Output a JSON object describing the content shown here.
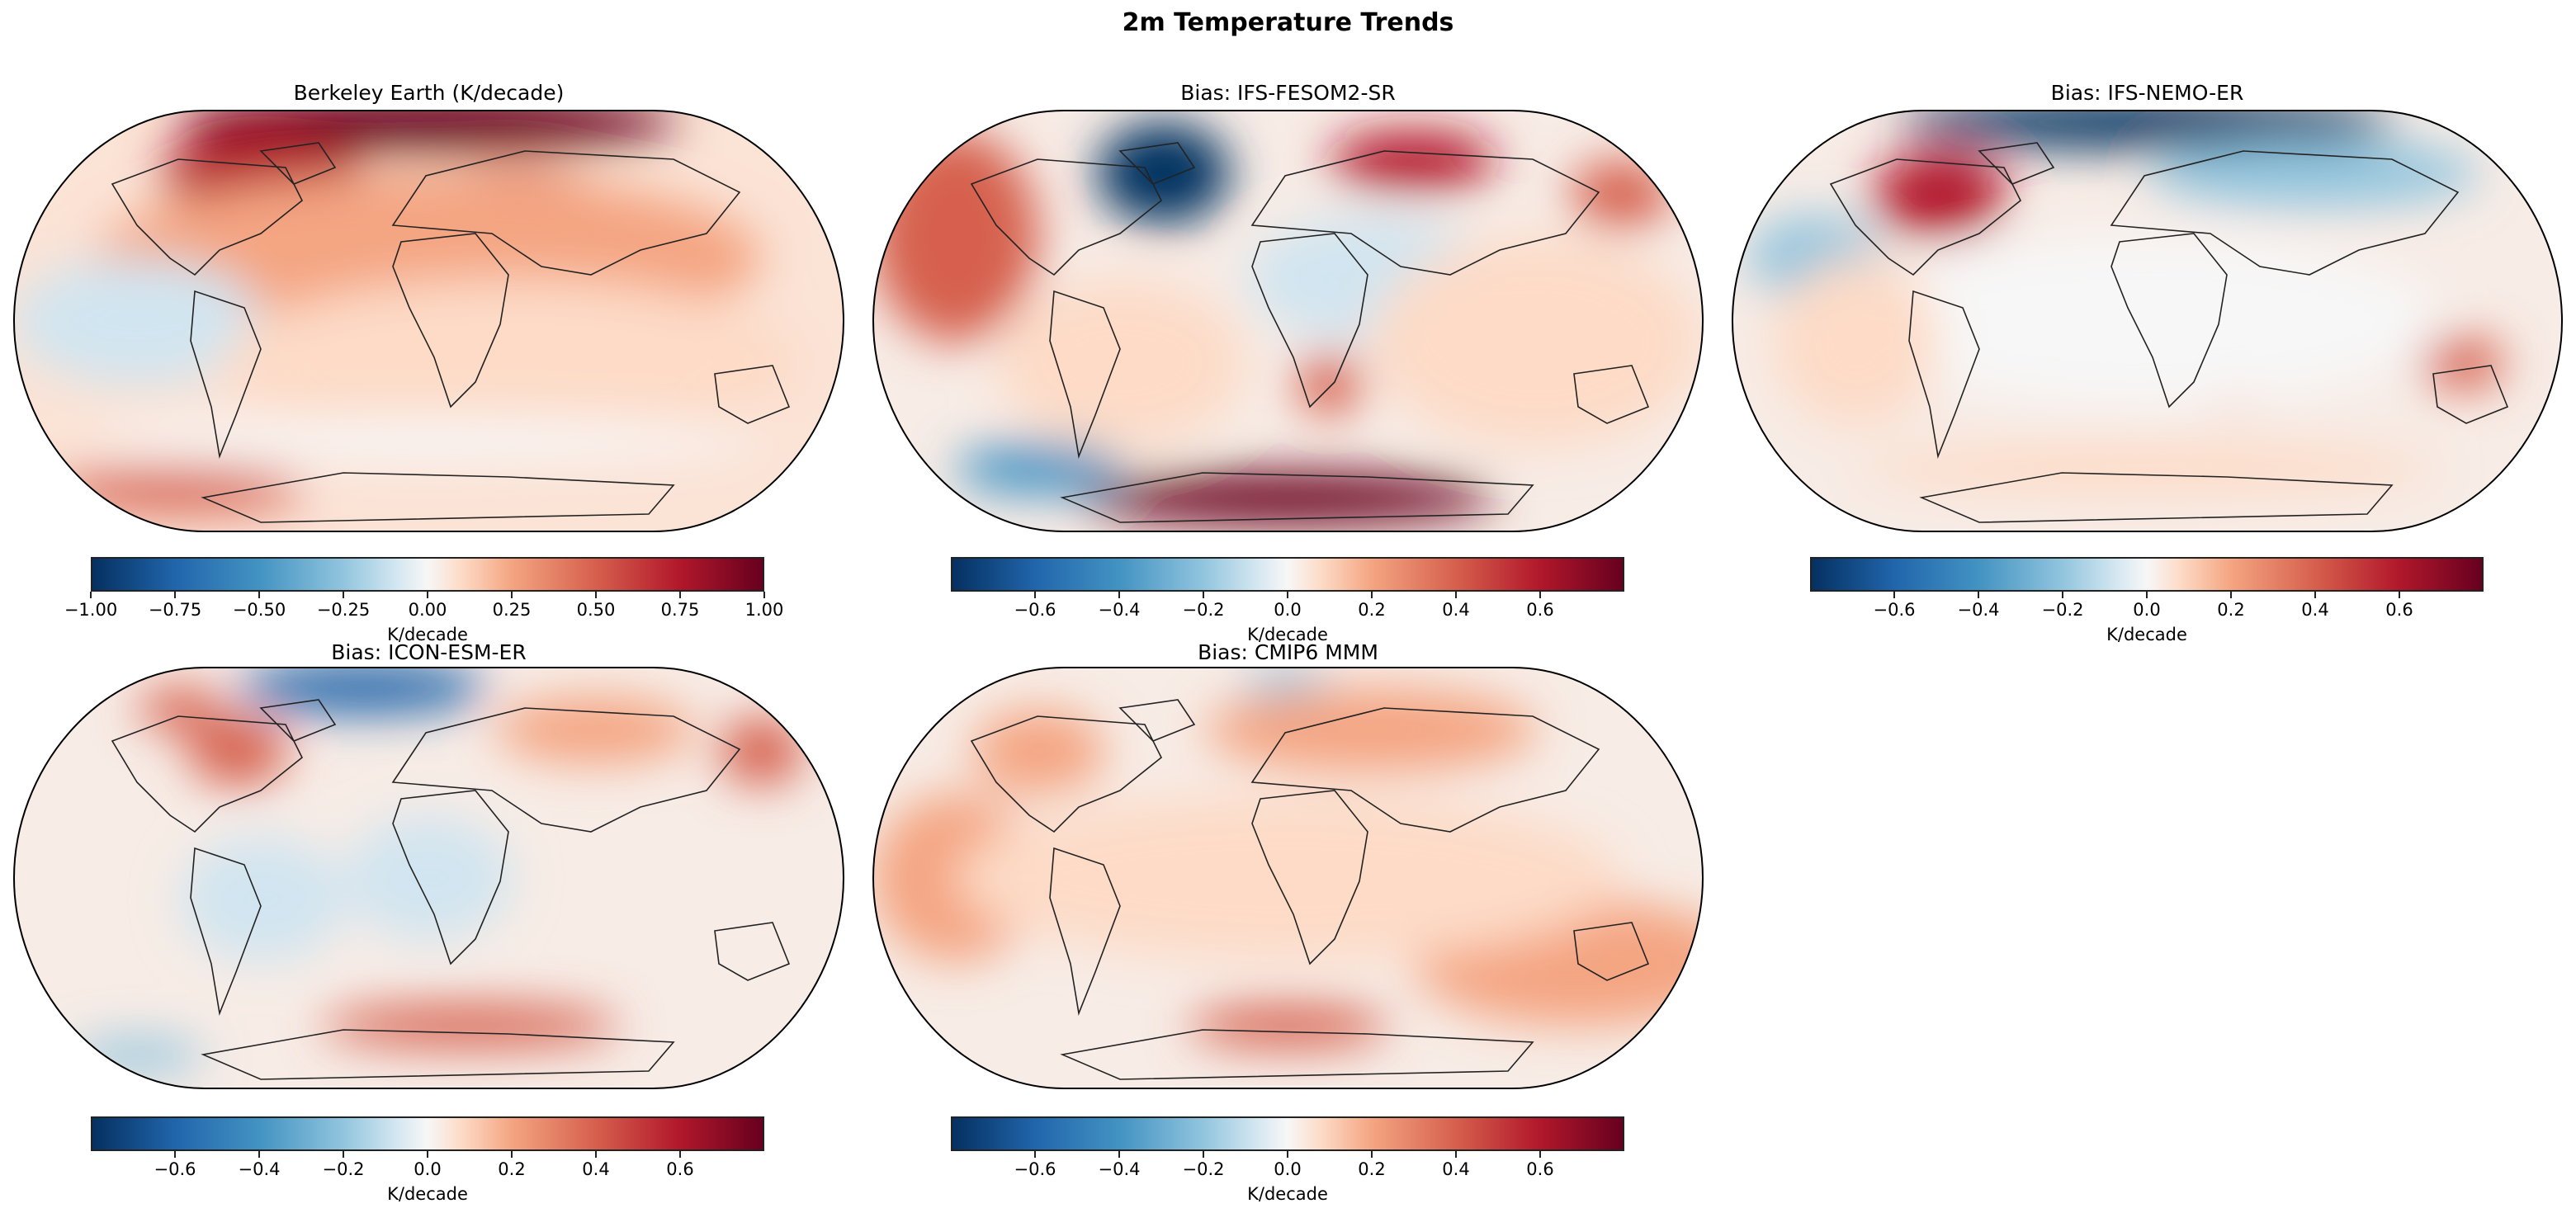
{
  "figure": {
    "title": "2m Temperature Trends"
  },
  "panels": [
    {
      "title": "Berkeley Earth (K/decade)",
      "colorbar": {
        "label": "K/decade",
        "range": [
          -1.0,
          1.0
        ],
        "ticks": [
          "−1.00",
          "−0.75",
          "−0.50",
          "−0.25",
          "0.00",
          "0.25",
          "0.50",
          "0.75",
          "1.00"
        ],
        "tick_values": [
          -1,
          -0.75,
          -0.5,
          -0.25,
          0,
          0.25,
          0.5,
          0.75,
          1
        ]
      }
    },
    {
      "title": "Bias: IFS-FESOM2-SR",
      "colorbar": {
        "label": "K/decade",
        "range": [
          -0.8,
          0.8
        ],
        "ticks": [
          "−0.6",
          "−0.4",
          "−0.2",
          "0.0",
          "0.2",
          "0.4",
          "0.6"
        ],
        "tick_values": [
          -0.6,
          -0.4,
          -0.2,
          0,
          0.2,
          0.4,
          0.6
        ]
      }
    },
    {
      "title": "Bias: IFS-NEMO-ER",
      "colorbar": {
        "label": "K/decade",
        "range": [
          -0.8,
          0.8
        ],
        "ticks": [
          "−0.6",
          "−0.4",
          "−0.2",
          "0.0",
          "0.2",
          "0.4",
          "0.6"
        ],
        "tick_values": [
          -0.6,
          -0.4,
          -0.2,
          0,
          0.2,
          0.4,
          0.6
        ]
      }
    },
    {
      "title": "Bias: ICON-ESM-ER",
      "colorbar": {
        "label": "K/decade",
        "range": [
          -0.8,
          0.8
        ],
        "ticks": [
          "−0.6",
          "−0.4",
          "−0.2",
          "0.0",
          "0.2",
          "0.4",
          "0.6"
        ],
        "tick_values": [
          -0.6,
          -0.4,
          -0.2,
          0,
          0.2,
          0.4,
          0.6
        ]
      }
    },
    {
      "title": "Bias: CMIP6 MMM",
      "colorbar": {
        "label": "K/decade",
        "range": [
          -0.8,
          0.8
        ],
        "ticks": [
          "−0.6",
          "−0.4",
          "−0.2",
          "0.0",
          "0.2",
          "0.4",
          "0.6"
        ],
        "tick_values": [
          -0.6,
          -0.4,
          -0.2,
          0,
          0.2,
          0.4,
          0.6
        ]
      }
    }
  ],
  "colormap": [
    "#053061",
    "#2166ac",
    "#4393c3",
    "#92c5de",
    "#d1e5f0",
    "#f7f7f7",
    "#fddbc7",
    "#f4a582",
    "#d6604d",
    "#b2182b",
    "#67001f"
  ],
  "projection": "Robinson"
}
